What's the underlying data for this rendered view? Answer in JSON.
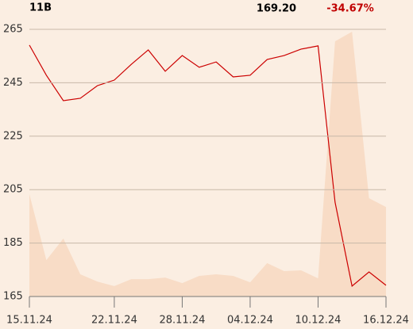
{
  "chart_data": {
    "type": "line",
    "symbol": "11B",
    "last_price": "169.20",
    "change": "-34.67%",
    "categories": [
      "15.11.24",
      null,
      null,
      null,
      null,
      "22.11.24",
      null,
      null,
      null,
      "28.11.24",
      null,
      null,
      null,
      "04.12.24",
      null,
      null,
      null,
      "10.12.24",
      null,
      null,
      null,
      "16.12.24"
    ],
    "series": [
      {
        "name": "Volume",
        "type": "area",
        "axis": "y2",
        "color": "#f8dcc6",
        "values": [
          38.3,
          13.6,
          21.7,
          8.3,
          5.6,
          3.9,
          6.5,
          6.5,
          7.1,
          5.0,
          7.7,
          8.3,
          7.7,
          5.3,
          12.5,
          9.5,
          9.8,
          6.8,
          95.5,
          99.1,
          36.8,
          33.5
        ]
      },
      {
        "name": "Price",
        "type": "line",
        "color": "#cc0000",
        "values": [
          259.1,
          247.8,
          238.3,
          239.2,
          243.9,
          246.0,
          251.9,
          257.3,
          249.3,
          255.2,
          250.8,
          252.8,
          247.2,
          247.8,
          253.7,
          255.2,
          257.6,
          258.8,
          200.3,
          168.9,
          174.2,
          169.2
        ]
      }
    ],
    "ylim": [
      165,
      265
    ],
    "yticks": [
      165,
      185,
      205,
      225,
      245,
      265
    ],
    "y2lim": [
      0,
      100
    ],
    "grid": true
  }
}
